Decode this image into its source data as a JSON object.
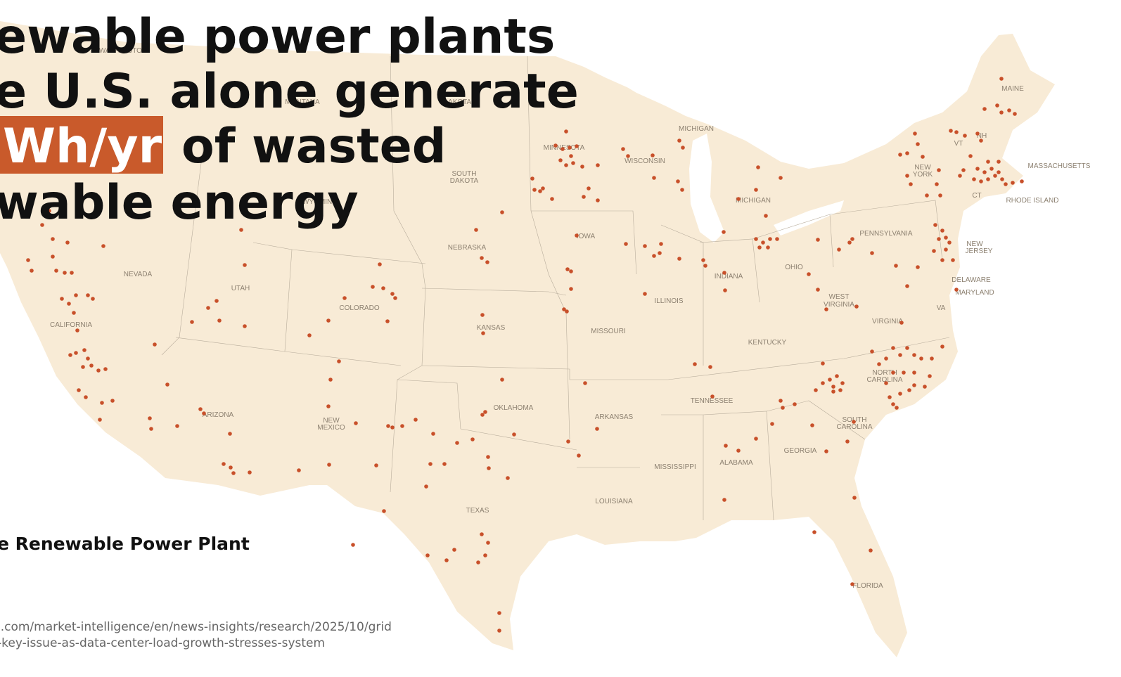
{
  "headline": {
    "line1": "ewable power plants",
    "line2": "e U.S. alone generate",
    "highlight": "Wh/yr",
    "line3_rest": "of wasted",
    "line4": "wable energy"
  },
  "state_labels": [
    "WASHINGTON",
    "MONTANA",
    "DAKOTA",
    "WYOMING",
    "SOUTH",
    "DAKOTA",
    "MINNESOTA",
    "WISCONSIN",
    "MICHIGAN",
    "MICHIGAN",
    "NEBRASKA",
    "IOWA",
    "NEVADA",
    "UTAH",
    "COLORADO",
    "CALIFORNIA",
    "KANSAS",
    "MISSOURI",
    "ILLINOIS",
    "INDIANA",
    "OHIO",
    "PENNSYLVANIA",
    "NEW",
    "YORK",
    "VT",
    "NH",
    "MAINE",
    "MASSACHUSETTS",
    "RHODE ISLAND",
    "CT",
    "NEW",
    "JERSEY",
    "DELAWARE",
    "MARYLAND",
    "VA",
    "WEST",
    "VIRGINIA",
    "VIRGINIA",
    "KENTUCKY",
    "TENNESSEE",
    "NORTH",
    "CAROLINA",
    "SOUTH",
    "CAROLINA",
    "OKLAHOMA",
    "ARKANSAS",
    "ARIZONA",
    "NEW",
    "MEXICO",
    "TEXAS",
    "MISSISSIPPI",
    "ALABAMA",
    "GEORGIA",
    "LOUISIANA",
    "FLORIDA"
  ],
  "legend": {
    "label": "e Renewable Power Plant"
  },
  "source": {
    "lines": [
      "l.com/market-intelligence/en/news-insights/research/2025/10/grid",
      "-key-issue-as-data-center-load-growth-stresses-system"
    ]
  }
}
